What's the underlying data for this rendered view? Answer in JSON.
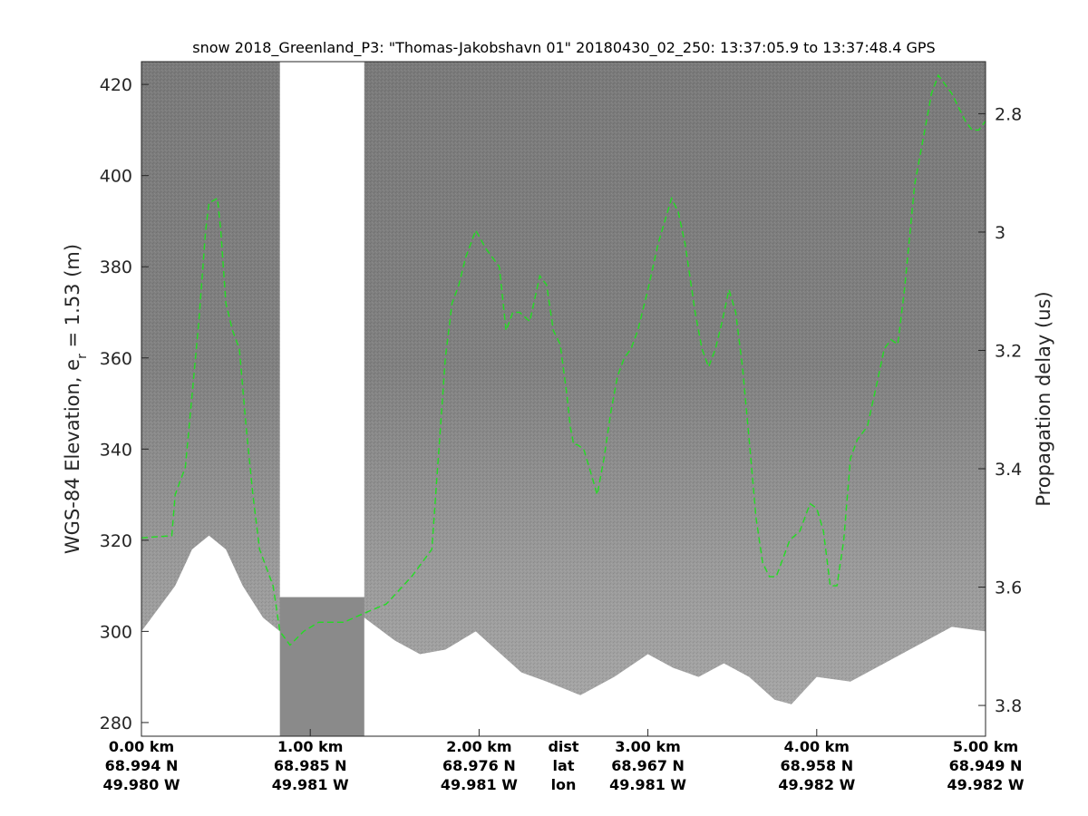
{
  "chart_data": {
    "type": "line",
    "title": "snow 2018_Greenland_P3: \"Thomas-Jakobshavn 01\"  20180430_02_250: 13:37:05.9 to 13:37:48.4 GPS",
    "ylabel_left_main": "WGS-84 Elevation, e",
    "ylabel_left_sub": "r",
    "ylabel_left_rest": " = 1.53 (m)",
    "ylabel_right": "Propagation delay (us)",
    "xlim": [
      0,
      5.0
    ],
    "ylim": [
      277,
      425
    ],
    "y2lim": [
      3.852,
      2.712
    ],
    "yticks": [
      280,
      300,
      320,
      340,
      360,
      380,
      400,
      420
    ],
    "y2ticks": [
      2.8,
      3,
      3.2,
      3.4,
      3.6,
      3.8
    ],
    "grid": false,
    "background": "radar echogram (grayscale)",
    "data_gap": {
      "from": 0.82,
      "to": 1.32
    },
    "bottom_axis": {
      "columns": [
        {
          "x": 0.0,
          "dist": "0.00 km",
          "lat": "68.994 N",
          "lon": "49.980 W"
        },
        {
          "x": 1.0,
          "dist": "1.00 km",
          "lat": "68.985 N",
          "lon": "49.981 W"
        },
        {
          "x": 2.0,
          "dist": "2.00 km",
          "lat": "68.976 N",
          "lon": "49.981 W"
        },
        {
          "x": 3.0,
          "dist": "3.00 km",
          "lat": "68.967 N",
          "lon": "49.981 W"
        },
        {
          "x": 4.0,
          "dist": "4.00 km",
          "lat": "68.958 N",
          "lon": "49.982 W"
        },
        {
          "x": 5.0,
          "dist": "5.00 km",
          "lat": "68.949 N",
          "lon": "49.982 W"
        }
      ],
      "legend_column": {
        "x": 2.5,
        "dist": "dist",
        "lat": "lat",
        "lon": "lon"
      }
    },
    "series": [
      {
        "color": "#22dd22",
        "style": "dashed",
        "x": [
          0.0,
          0.18,
          0.2,
          0.26,
          0.3,
          0.34,
          0.38,
          0.4,
          0.45,
          0.47,
          0.5,
          0.54,
          0.58,
          0.62,
          0.66,
          0.7,
          0.78,
          0.82,
          0.88,
          0.96,
          1.05,
          1.2,
          1.32,
          1.45,
          1.6,
          1.72,
          1.8,
          1.84,
          1.88,
          1.92,
          1.98,
          2.04,
          2.12,
          2.16,
          2.2,
          2.24,
          2.3,
          2.36,
          2.4,
          2.44,
          2.48,
          2.52,
          2.54,
          2.56,
          2.58,
          2.62,
          2.66,
          2.7,
          2.74,
          2.78,
          2.82,
          2.86,
          2.9,
          2.94,
          3.0,
          3.06,
          3.1,
          3.14,
          3.18,
          3.22,
          3.28,
          3.32,
          3.36,
          3.4,
          3.44,
          3.48,
          3.52,
          3.56,
          3.6,
          3.64,
          3.68,
          3.72,
          3.76,
          3.8,
          3.84,
          3.9,
          3.96,
          4.0,
          4.04,
          4.08,
          4.12,
          4.16,
          4.2,
          4.24,
          4.3,
          4.36,
          4.4,
          4.44,
          4.48,
          4.52,
          4.58,
          4.64,
          4.68,
          4.72,
          4.76,
          4.8,
          4.84,
          4.88,
          4.92,
          4.96,
          5.0
        ],
        "y": [
          320.5,
          321,
          330,
          336,
          352,
          368,
          388,
          394,
          395,
          388,
          372,
          366,
          362,
          345,
          330,
          318,
          310,
          300,
          297,
          300,
          302,
          302,
          304,
          306,
          312,
          318,
          360,
          372,
          376,
          382,
          388,
          384,
          380,
          366,
          370,
          370,
          368,
          378,
          376,
          366,
          363,
          352,
          345,
          341,
          341,
          340,
          335,
          330,
          338,
          348,
          356,
          360,
          362,
          366,
          375,
          385,
          390,
          395,
          392,
          385,
          370,
          362,
          358,
          362,
          368,
          375,
          370,
          358,
          342,
          325,
          315,
          312,
          312,
          316,
          320,
          322,
          328,
          327,
          322,
          310,
          310,
          320,
          338,
          342,
          345,
          355,
          362,
          364,
          363,
          375,
          398,
          410,
          418,
          422,
          420,
          418,
          415,
          412,
          410,
          410,
          412
        ]
      }
    ]
  }
}
